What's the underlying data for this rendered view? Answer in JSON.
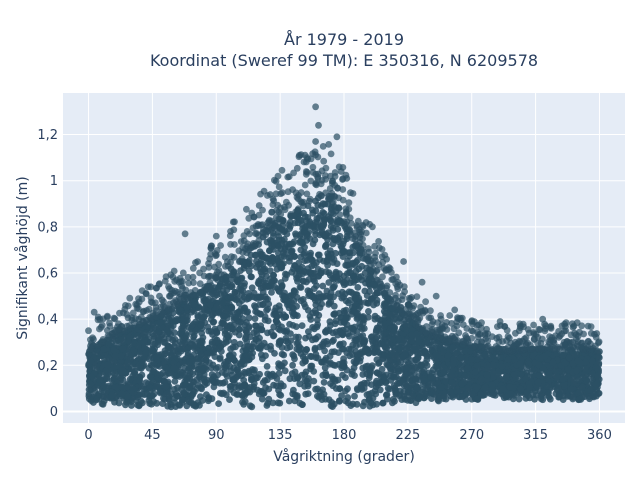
{
  "chart_data": {
    "type": "scatter",
    "title": [
      "År 1979 - 2019",
      "Koordinat (Sweref 99 TM): E 350316, N 6209578"
    ],
    "xlabel": "Vågriktning (grader)",
    "ylabel": "Signifikant våghöjd (m)",
    "xlim": [
      -18,
      378
    ],
    "ylim": [
      -0.05,
      1.38
    ],
    "x_ticks": [
      0,
      45,
      90,
      135,
      180,
      225,
      270,
      315,
      360
    ],
    "x_tick_labels": [
      "0",
      "45",
      "90",
      "135",
      "180",
      "225",
      "270",
      "315",
      "360"
    ],
    "y_ticks": [
      0,
      0.2,
      0.4,
      0.6,
      0.8,
      1.0,
      1.2
    ],
    "y_tick_labels": [
      "0",
      "0,2",
      "0,4",
      "0,6",
      "0,8",
      "1",
      "1,2"
    ],
    "grid": true,
    "marker_color": "#2c5064",
    "plot_background": "#e5ecf6",
    "envelope": {
      "direction": [
        0,
        10,
        20,
        30,
        45,
        60,
        75,
        90,
        105,
        120,
        135,
        150,
        160,
        170,
        180,
        195,
        210,
        225,
        240,
        255,
        270,
        285,
        300,
        315,
        330,
        345,
        360
      ],
      "lower_height": [
        0.03,
        0.03,
        0.03,
        0.02,
        0.02,
        0.02,
        0.02,
        0.02,
        0.02,
        0.02,
        0.02,
        0.02,
        0.02,
        0.02,
        0.02,
        0.02,
        0.03,
        0.03,
        0.04,
        0.05,
        0.05,
        0.05,
        0.05,
        0.05,
        0.05,
        0.05,
        0.05
      ],
      "dense_upper_height": [
        0.26,
        0.3,
        0.33,
        0.36,
        0.4,
        0.45,
        0.5,
        0.56,
        0.64,
        0.74,
        0.82,
        0.88,
        0.93,
        0.92,
        0.82,
        0.65,
        0.5,
        0.4,
        0.33,
        0.3,
        0.28,
        0.26,
        0.26,
        0.27,
        0.27,
        0.27,
        0.26
      ]
    },
    "highlighted_points": [
      {
        "x": 160,
        "y": 1.32
      },
      {
        "x": 162,
        "y": 1.24
      },
      {
        "x": 160,
        "y": 1.17
      },
      {
        "x": 175,
        "y": 1.19
      },
      {
        "x": 154,
        "y": 1.1
      },
      {
        "x": 178,
        "y": 1.04
      },
      {
        "x": 182,
        "y": 1.01
      },
      {
        "x": 68,
        "y": 0.77
      },
      {
        "x": 90,
        "y": 0.76
      },
      {
        "x": 115,
        "y": 0.86
      },
      {
        "x": 128,
        "y": 0.94
      },
      {
        "x": 4,
        "y": 0.43
      },
      {
        "x": 0,
        "y": 0.35
      },
      {
        "x": 42,
        "y": 0.54
      },
      {
        "x": 50,
        "y": 0.5
      },
      {
        "x": 258,
        "y": 0.44
      },
      {
        "x": 270,
        "y": 0.39
      },
      {
        "x": 290,
        "y": 0.39
      },
      {
        "x": 320,
        "y": 0.4
      },
      {
        "x": 342,
        "y": 0.37
      },
      {
        "x": 352,
        "y": 0.37
      },
      {
        "x": 210,
        "y": 0.66
      },
      {
        "x": 222,
        "y": 0.65
      },
      {
        "x": 200,
        "y": 0.8
      },
      {
        "x": 235,
        "y": 0.56
      },
      {
        "x": 245,
        "y": 0.5
      }
    ]
  }
}
